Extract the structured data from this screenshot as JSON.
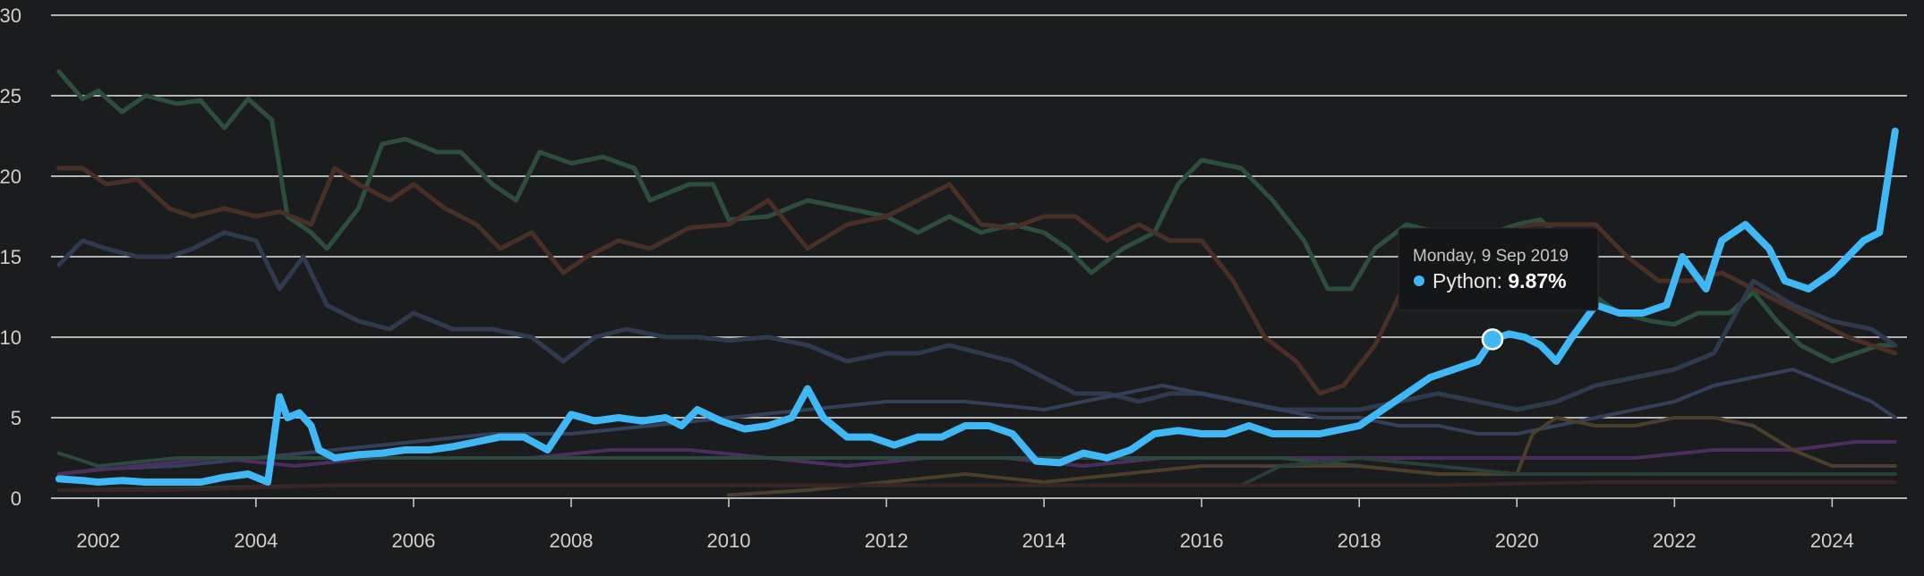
{
  "chart_data": {
    "type": "line",
    "title": "",
    "xlabel": "",
    "ylabel": "",
    "xlim": [
      2001.4,
      2024.95
    ],
    "ylim": [
      0,
      30
    ],
    "x_ticks": [
      "2002",
      "2004",
      "2006",
      "2008",
      "2010",
      "2012",
      "2014",
      "2016",
      "2018",
      "2020",
      "2022",
      "2024"
    ],
    "y_ticks": [
      "0",
      "5",
      "10",
      "15",
      "20",
      "25",
      "30"
    ],
    "grid": true,
    "legend": "none",
    "highlight_color": "#3fb8f5",
    "tooltip": {
      "date": "Monday, 9 Sep 2019",
      "series": "Python",
      "value": "9.87%",
      "x": 2019.69,
      "y": 9.87
    },
    "series": [
      {
        "color": "#2c4f3d",
        "x": [
          2001.5,
          2001.8,
          2002.0,
          2002.3,
          2002.6,
          2003.0,
          2003.3,
          2003.6,
          2003.9,
          2004.2,
          2004.4,
          2004.7,
          2004.9,
          2005.3,
          2005.6,
          2005.9,
          2006.3,
          2006.6,
          2007.0,
          2007.3,
          2007.6,
          2008.0,
          2008.4,
          2008.8,
          2009.0,
          2009.5,
          2009.8,
          2010.0,
          2010.5,
          2011.0,
          2011.5,
          2012.0,
          2012.4,
          2012.8,
          2013.2,
          2013.6,
          2014.0,
          2014.3,
          2014.6,
          2015.0,
          2015.4,
          2015.7,
          2016.0,
          2016.5,
          2016.9,
          2017.3,
          2017.6,
          2017.9,
          2018.2,
          2018.6,
          2019.0,
          2019.3,
          2019.7,
          2020.0,
          2020.3,
          2020.7,
          2021.0,
          2021.3,
          2021.7,
          2022.0,
          2022.3,
          2022.7,
          2023.0,
          2023.3,
          2023.6,
          2024.0,
          2024.3,
          2024.6,
          2024.8
        ],
        "values": [
          26.5,
          24.8,
          25.3,
          24.0,
          25.0,
          24.5,
          24.7,
          23.0,
          24.8,
          23.5,
          17.5,
          16.5,
          15.5,
          18.0,
          22.0,
          22.3,
          21.5,
          21.5,
          19.5,
          18.5,
          21.5,
          20.8,
          21.2,
          20.5,
          18.5,
          19.5,
          19.5,
          17.3,
          17.5,
          18.5,
          18.0,
          17.5,
          16.5,
          17.5,
          16.5,
          17.0,
          16.5,
          15.5,
          14.0,
          15.5,
          16.5,
          19.5,
          21.0,
          20.5,
          18.5,
          16.0,
          13.0,
          13.0,
          15.5,
          17.0,
          16.5,
          16.0,
          16.5,
          17.0,
          17.3,
          15.5,
          12.5,
          11.5,
          11.0,
          10.8,
          11.5,
          11.5,
          12.8,
          11.0,
          9.5,
          8.5,
          9.0,
          9.5,
          9.5
        ],
        "width": 5
      },
      {
        "color": "#4a2f27",
        "x": [
          2001.5,
          2001.8,
          2002.1,
          2002.5,
          2002.9,
          2003.2,
          2003.6,
          2004.0,
          2004.3,
          2004.7,
          2005.0,
          2005.3,
          2005.7,
          2006.0,
          2006.4,
          2006.8,
          2007.1,
          2007.5,
          2007.9,
          2008.2,
          2008.6,
          2009.0,
          2009.5,
          2010.0,
          2010.5,
          2011.0,
          2011.5,
          2012.0,
          2012.4,
          2012.8,
          2013.2,
          2013.6,
          2014.0,
          2014.4,
          2014.8,
          2015.2,
          2015.6,
          2016.0,
          2016.4,
          2016.8,
          2017.2,
          2017.5,
          2017.8,
          2018.2,
          2018.6,
          2019.0,
          2019.4,
          2019.8,
          2020.2,
          2020.6,
          2021.0,
          2021.4,
          2021.8,
          2022.2,
          2022.6,
          2023.0,
          2023.4,
          2023.8,
          2024.2,
          2024.5,
          2024.8
        ],
        "values": [
          20.5,
          20.5,
          19.5,
          19.8,
          18.0,
          17.5,
          18.0,
          17.5,
          17.8,
          17.0,
          20.5,
          19.5,
          18.5,
          19.5,
          18.0,
          17.0,
          15.5,
          16.5,
          14.0,
          15.0,
          16.0,
          15.5,
          16.8,
          17.0,
          18.5,
          15.5,
          17.0,
          17.5,
          18.5,
          19.5,
          17.0,
          16.8,
          17.5,
          17.5,
          16.0,
          17.0,
          16.0,
          16.0,
          13.5,
          10.0,
          8.5,
          6.5,
          7.0,
          9.5,
          13.5,
          15.0,
          16.0,
          16.5,
          17.0,
          17.0,
          17.0,
          15.0,
          13.5,
          13.5,
          14.0,
          13.0,
          12.0,
          11.0,
          10.0,
          9.5,
          9.0
        ],
        "width": 5
      },
      {
        "color": "#2f3a4e",
        "x": [
          2001.5,
          2001.8,
          2002.1,
          2002.5,
          2002.9,
          2003.2,
          2003.6,
          2004.0,
          2004.3,
          2004.6,
          2004.9,
          2005.3,
          2005.7,
          2006.0,
          2006.5,
          2007.0,
          2007.5,
          2007.9,
          2008.3,
          2008.7,
          2009.2,
          2009.6,
          2010.0,
          2010.5,
          2011.0,
          2011.5,
          2012.0,
          2012.4,
          2012.8,
          2013.2,
          2013.6,
          2014.0,
          2014.4,
          2014.8,
          2015.2,
          2015.6,
          2016.0,
          2016.5,
          2017.0,
          2017.5,
          2018.0,
          2018.5,
          2019.0,
          2019.5,
          2020.0,
          2020.5,
          2021.0,
          2021.5,
          2022.0,
          2022.5,
          2023.0,
          2023.5,
          2024.0,
          2024.5,
          2024.8
        ],
        "values": [
          14.5,
          16.0,
          15.5,
          15.0,
          15.0,
          15.5,
          16.5,
          16.0,
          13.0,
          15.0,
          12.0,
          11.0,
          10.5,
          11.5,
          10.5,
          10.5,
          10.0,
          8.5,
          10.0,
          10.5,
          10.0,
          10.0,
          9.8,
          10.0,
          9.5,
          8.5,
          9.0,
          9.0,
          9.5,
          9.0,
          8.5,
          7.5,
          6.5,
          6.5,
          6.0,
          6.5,
          6.5,
          6.0,
          5.5,
          5.5,
          5.5,
          6.0,
          6.5,
          6.0,
          5.5,
          6.0,
          7.0,
          7.5,
          8.0,
          9.0,
          13.5,
          12.0,
          11.0,
          10.5,
          9.5
        ],
        "width": 5
      },
      {
        "color": "#34405a",
        "x": [
          2001.5,
          2002.0,
          2003.0,
          2004.0,
          2005.0,
          2006.0,
          2007.0,
          2008.0,
          2009.0,
          2010.0,
          2011.0,
          2012.0,
          2013.0,
          2014.0,
          2014.5,
          2015.0,
          2015.5,
          2016.0,
          2016.5,
          2017.0,
          2017.5,
          2018.0,
          2018.5,
          2019.0,
          2019.5,
          2020.0,
          2020.5,
          2021.0,
          2021.5,
          2022.0,
          2022.5,
          2023.0,
          2023.5,
          2024.0,
          2024.5,
          2024.8
        ],
        "values": [
          1.5,
          1.8,
          2.0,
          2.5,
          3.0,
          3.5,
          4.0,
          4.0,
          4.5,
          5.0,
          5.5,
          6.0,
          6.0,
          5.5,
          6.0,
          6.5,
          7.0,
          6.5,
          6.0,
          5.5,
          5.0,
          5.0,
          4.5,
          4.5,
          4.0,
          4.0,
          4.5,
          5.0,
          5.5,
          6.0,
          7.0,
          7.5,
          8.0,
          7.0,
          6.0,
          5.0
        ],
        "width": 4
      },
      {
        "color": "#4a2f5e",
        "x": [
          2001.5,
          2002.5,
          2003.5,
          2004.5,
          2005.5,
          2006.5,
          2007.5,
          2008.5,
          2009.5,
          2010.5,
          2011.5,
          2012.5,
          2013.5,
          2014.5,
          2015.5,
          2016.5,
          2017.5,
          2018.5,
          2019.5,
          2020.5,
          2021.5,
          2022.5,
          2023.5,
          2024.3,
          2024.8
        ],
        "values": [
          1.5,
          2.0,
          2.5,
          2.0,
          2.5,
          2.5,
          2.5,
          3.0,
          3.0,
          2.5,
          2.0,
          2.5,
          2.5,
          2.0,
          2.5,
          2.5,
          2.5,
          2.5,
          2.5,
          2.5,
          2.5,
          3.0,
          3.0,
          3.5,
          3.5
        ],
        "width": 4
      },
      {
        "color": "#2b4a3f",
        "x": [
          2001.5,
          2002.0,
          2003.0,
          2004.0,
          2005.0,
          2006.0,
          2007.0,
          2008.0,
          2009.0,
          2010.0,
          2011.0,
          2012.0,
          2013.0,
          2014.0,
          2015.0,
          2016.0,
          2017.0,
          2018.0,
          2019.0,
          2020.0,
          2021.0,
          2022.0,
          2023.0,
          2024.0,
          2024.8
        ],
        "values": [
          2.8,
          2.0,
          2.5,
          2.5,
          2.5,
          2.5,
          2.5,
          2.5,
          2.5,
          2.5,
          2.5,
          2.5,
          2.5,
          2.5,
          2.5,
          2.5,
          2.5,
          2.0,
          1.5,
          1.5,
          1.5,
          1.5,
          1.5,
          1.5,
          1.5
        ],
        "width": 4
      },
      {
        "color": "#4a3f2a",
        "x": [
          2010.0,
          2011.0,
          2012.0,
          2013.0,
          2014.0,
          2015.0,
          2016.0,
          2017.0,
          2018.0,
          2019.0,
          2020.0,
          2020.2,
          2020.5,
          2021.0,
          2021.5,
          2022.0,
          2022.5,
          2023.0,
          2023.5,
          2024.0,
          2024.5,
          2024.8
        ],
        "values": [
          0.2,
          0.5,
          1.0,
          1.5,
          1.0,
          1.5,
          2.0,
          2.0,
          2.0,
          1.5,
          1.5,
          4.0,
          5.0,
          4.5,
          4.5,
          5.0,
          5.0,
          4.5,
          3.0,
          2.0,
          2.0,
          2.0
        ],
        "width": 4
      },
      {
        "color": "#2a3e3a",
        "x": [
          2001.5,
          2003.0,
          2005.0,
          2007.0,
          2009.0,
          2011.0,
          2013.0,
          2015.0,
          2016.5,
          2017.0,
          2018.0,
          2019.0,
          2020.0,
          2021.0,
          2022.0,
          2023.0,
          2024.0,
          2024.8
        ],
        "values": [
          0.5,
          0.6,
          0.8,
          0.8,
          0.8,
          0.8,
          0.8,
          0.8,
          0.8,
          2.0,
          2.5,
          2.0,
          1.5,
          1.5,
          1.5,
          1.5,
          1.5,
          1.5
        ],
        "width": 4
      },
      {
        "color": "#3a2424",
        "x": [
          2001.5,
          2003.0,
          2005.0,
          2007.0,
          2009.0,
          2011.0,
          2013.0,
          2015.0,
          2017.0,
          2019.0,
          2021.0,
          2023.0,
          2024.8
        ],
        "values": [
          0.5,
          0.5,
          0.8,
          0.8,
          0.8,
          0.8,
          0.8,
          0.8,
          0.8,
          0.8,
          1.0,
          1.0,
          1.0
        ],
        "width": 4
      },
      {
        "color": "#3fb8f5",
        "x": [
          2001.5,
          2001.8,
          2002.0,
          2002.3,
          2002.6,
          2003.0,
          2003.3,
          2003.6,
          2003.9,
          2004.15,
          2004.3,
          2004.4,
          2004.55,
          2004.7,
          2004.8,
          2005.0,
          2005.3,
          2005.6,
          2005.9,
          2006.2,
          2006.5,
          2006.8,
          2007.1,
          2007.4,
          2007.7,
          2008.0,
          2008.3,
          2008.6,
          2008.9,
          2009.2,
          2009.4,
          2009.6,
          2009.9,
          2010.2,
          2010.5,
          2010.8,
          2011.0,
          2011.2,
          2011.5,
          2011.8,
          2012.1,
          2012.4,
          2012.7,
          2013.0,
          2013.3,
          2013.6,
          2013.9,
          2014.2,
          2014.5,
          2014.8,
          2015.1,
          2015.4,
          2015.7,
          2016.0,
          2016.3,
          2016.6,
          2016.9,
          2017.2,
          2017.5,
          2017.8,
          2018.0,
          2018.3,
          2018.6,
          2018.9,
          2019.2,
          2019.5,
          2019.69,
          2019.9,
          2020.1,
          2020.3,
          2020.5,
          2020.7,
          2021.0,
          2021.3,
          2021.6,
          2021.9,
          2022.1,
          2022.4,
          2022.6,
          2022.9,
          2023.2,
          2023.4,
          2023.7,
          2024.0,
          2024.2,
          2024.4,
          2024.6,
          2024.8
        ],
        "values": [
          1.2,
          1.1,
          1.0,
          1.1,
          1.0,
          1.0,
          1.0,
          1.3,
          1.5,
          1.0,
          6.3,
          5.0,
          5.3,
          4.5,
          3.0,
          2.5,
          2.7,
          2.8,
          3.0,
          3.0,
          3.2,
          3.5,
          3.8,
          3.8,
          3.0,
          5.2,
          4.8,
          5.0,
          4.8,
          5.0,
          4.5,
          5.5,
          4.8,
          4.3,
          4.5,
          5.0,
          6.8,
          5.0,
          3.8,
          3.8,
          3.3,
          3.8,
          3.8,
          4.5,
          4.5,
          4.0,
          2.3,
          2.2,
          2.8,
          2.5,
          3.0,
          4.0,
          4.2,
          4.0,
          4.0,
          4.5,
          4.0,
          4.0,
          4.0,
          4.3,
          4.5,
          5.5,
          6.5,
          7.5,
          8.0,
          8.5,
          9.87,
          10.2,
          10.0,
          9.5,
          8.5,
          10.0,
          12.0,
          11.5,
          11.5,
          12.0,
          15.0,
          13.0,
          16.0,
          17.0,
          15.5,
          13.5,
          13.0,
          14.0,
          15.0,
          16.0,
          16.5,
          22.8
        ],
        "width": 8
      }
    ]
  }
}
